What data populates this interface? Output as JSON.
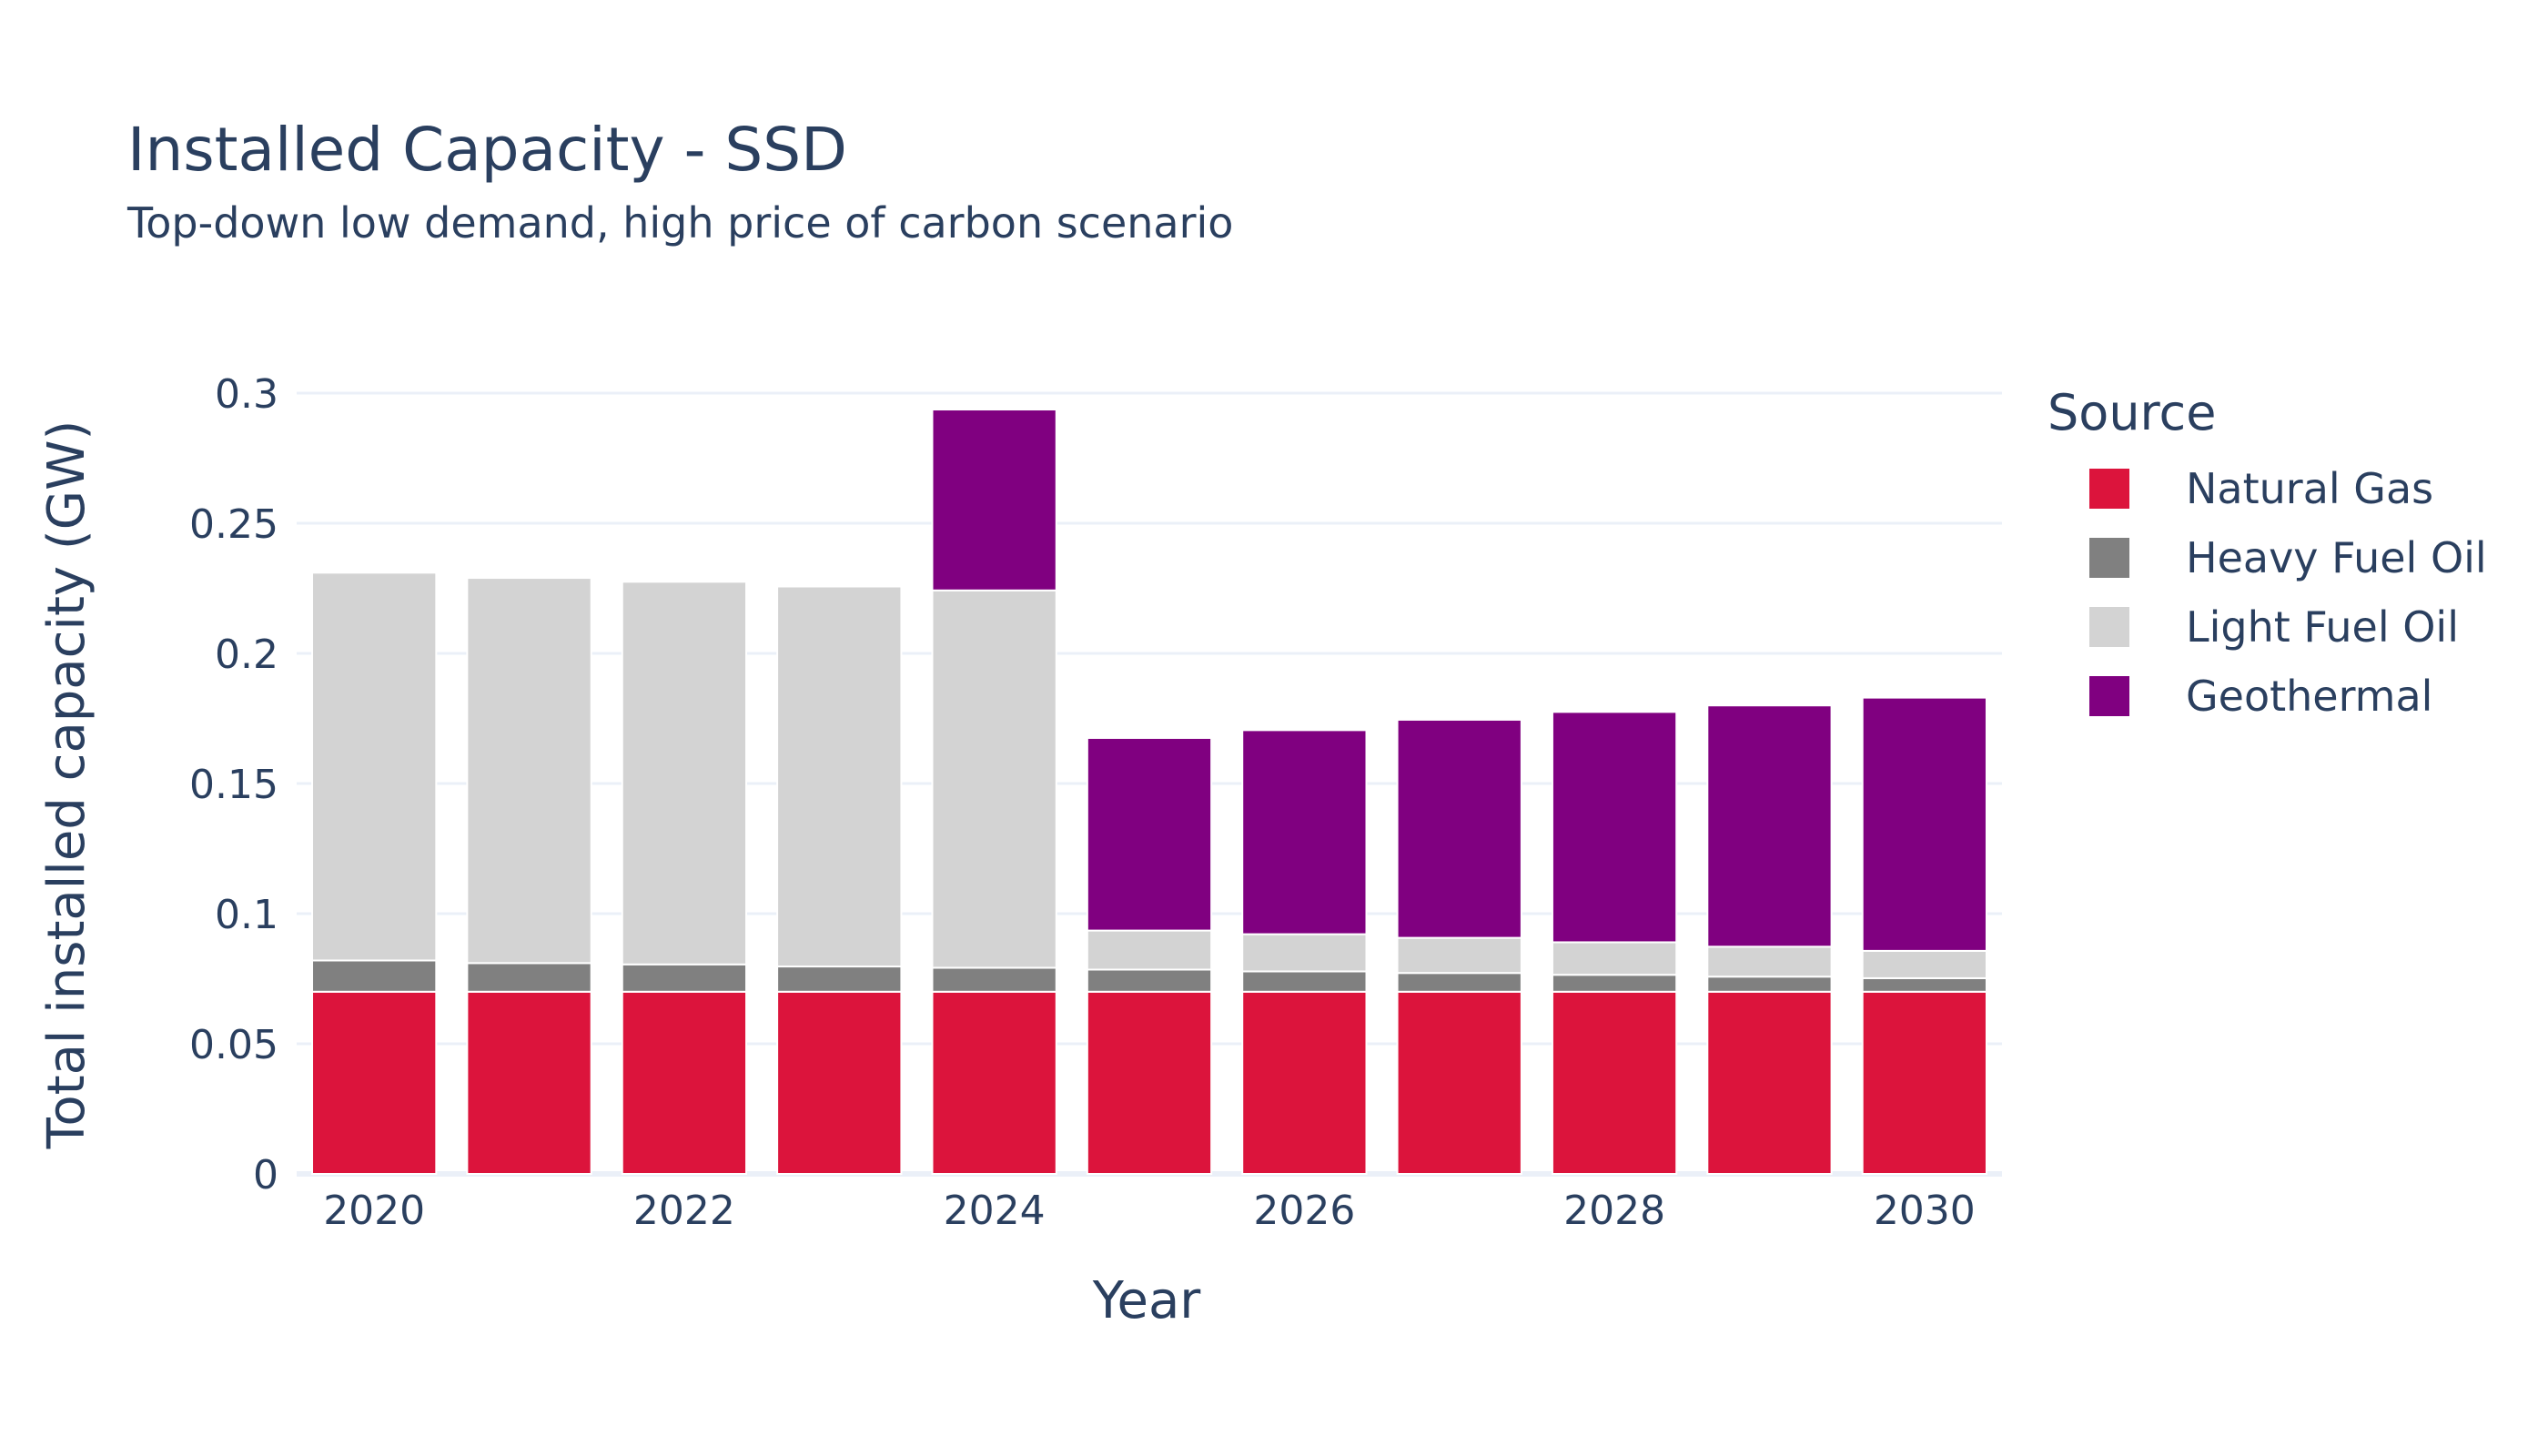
{
  "chart_data": {
    "type": "bar",
    "barmode": "stack",
    "title": "Installed Capacity - SSD",
    "subtitle": "Top-down low demand, high price of carbon scenario",
    "xlabel": "Year",
    "ylabel": "Total installed capacity (GW)",
    "ylim": [
      0,
      0.3
    ],
    "yticks": [
      "0",
      "0.05",
      "0.1",
      "0.15",
      "0.2",
      "0.25",
      "0.3"
    ],
    "xticks": [
      "2020",
      "2022",
      "2024",
      "2026",
      "2028",
      "2030"
    ],
    "x": [
      2020,
      2021,
      2022,
      2023,
      2024,
      2025,
      2026,
      2027,
      2028,
      2029,
      2030
    ],
    "grid": true,
    "legend_title": "Source",
    "legend_position": "right",
    "series": [
      {
        "name": "Natural Gas",
        "color": "#dc143c",
        "values": [
          0.07,
          0.07,
          0.07,
          0.07,
          0.07,
          0.07,
          0.07,
          0.07,
          0.07,
          0.07,
          0.07
        ]
      },
      {
        "name": "Heavy Fuel Oil",
        "color": "#808080",
        "values": [
          0.012,
          0.011,
          0.0105,
          0.0097,
          0.0092,
          0.0085,
          0.0078,
          0.0072,
          0.0065,
          0.0058,
          0.0052
        ]
      },
      {
        "name": "Light Fuel Oil",
        "color": "#d3d3d3",
        "values": [
          0.149,
          0.148,
          0.147,
          0.146,
          0.145,
          0.015,
          0.0143,
          0.0135,
          0.0125,
          0.0115,
          0.0105
        ]
      },
      {
        "name": "Geothermal",
        "color": "#800080",
        "values": [
          0,
          0,
          0,
          0,
          0.0695,
          0.074,
          0.0784,
          0.0838,
          0.0885,
          0.0927,
          0.0973
        ]
      }
    ]
  }
}
